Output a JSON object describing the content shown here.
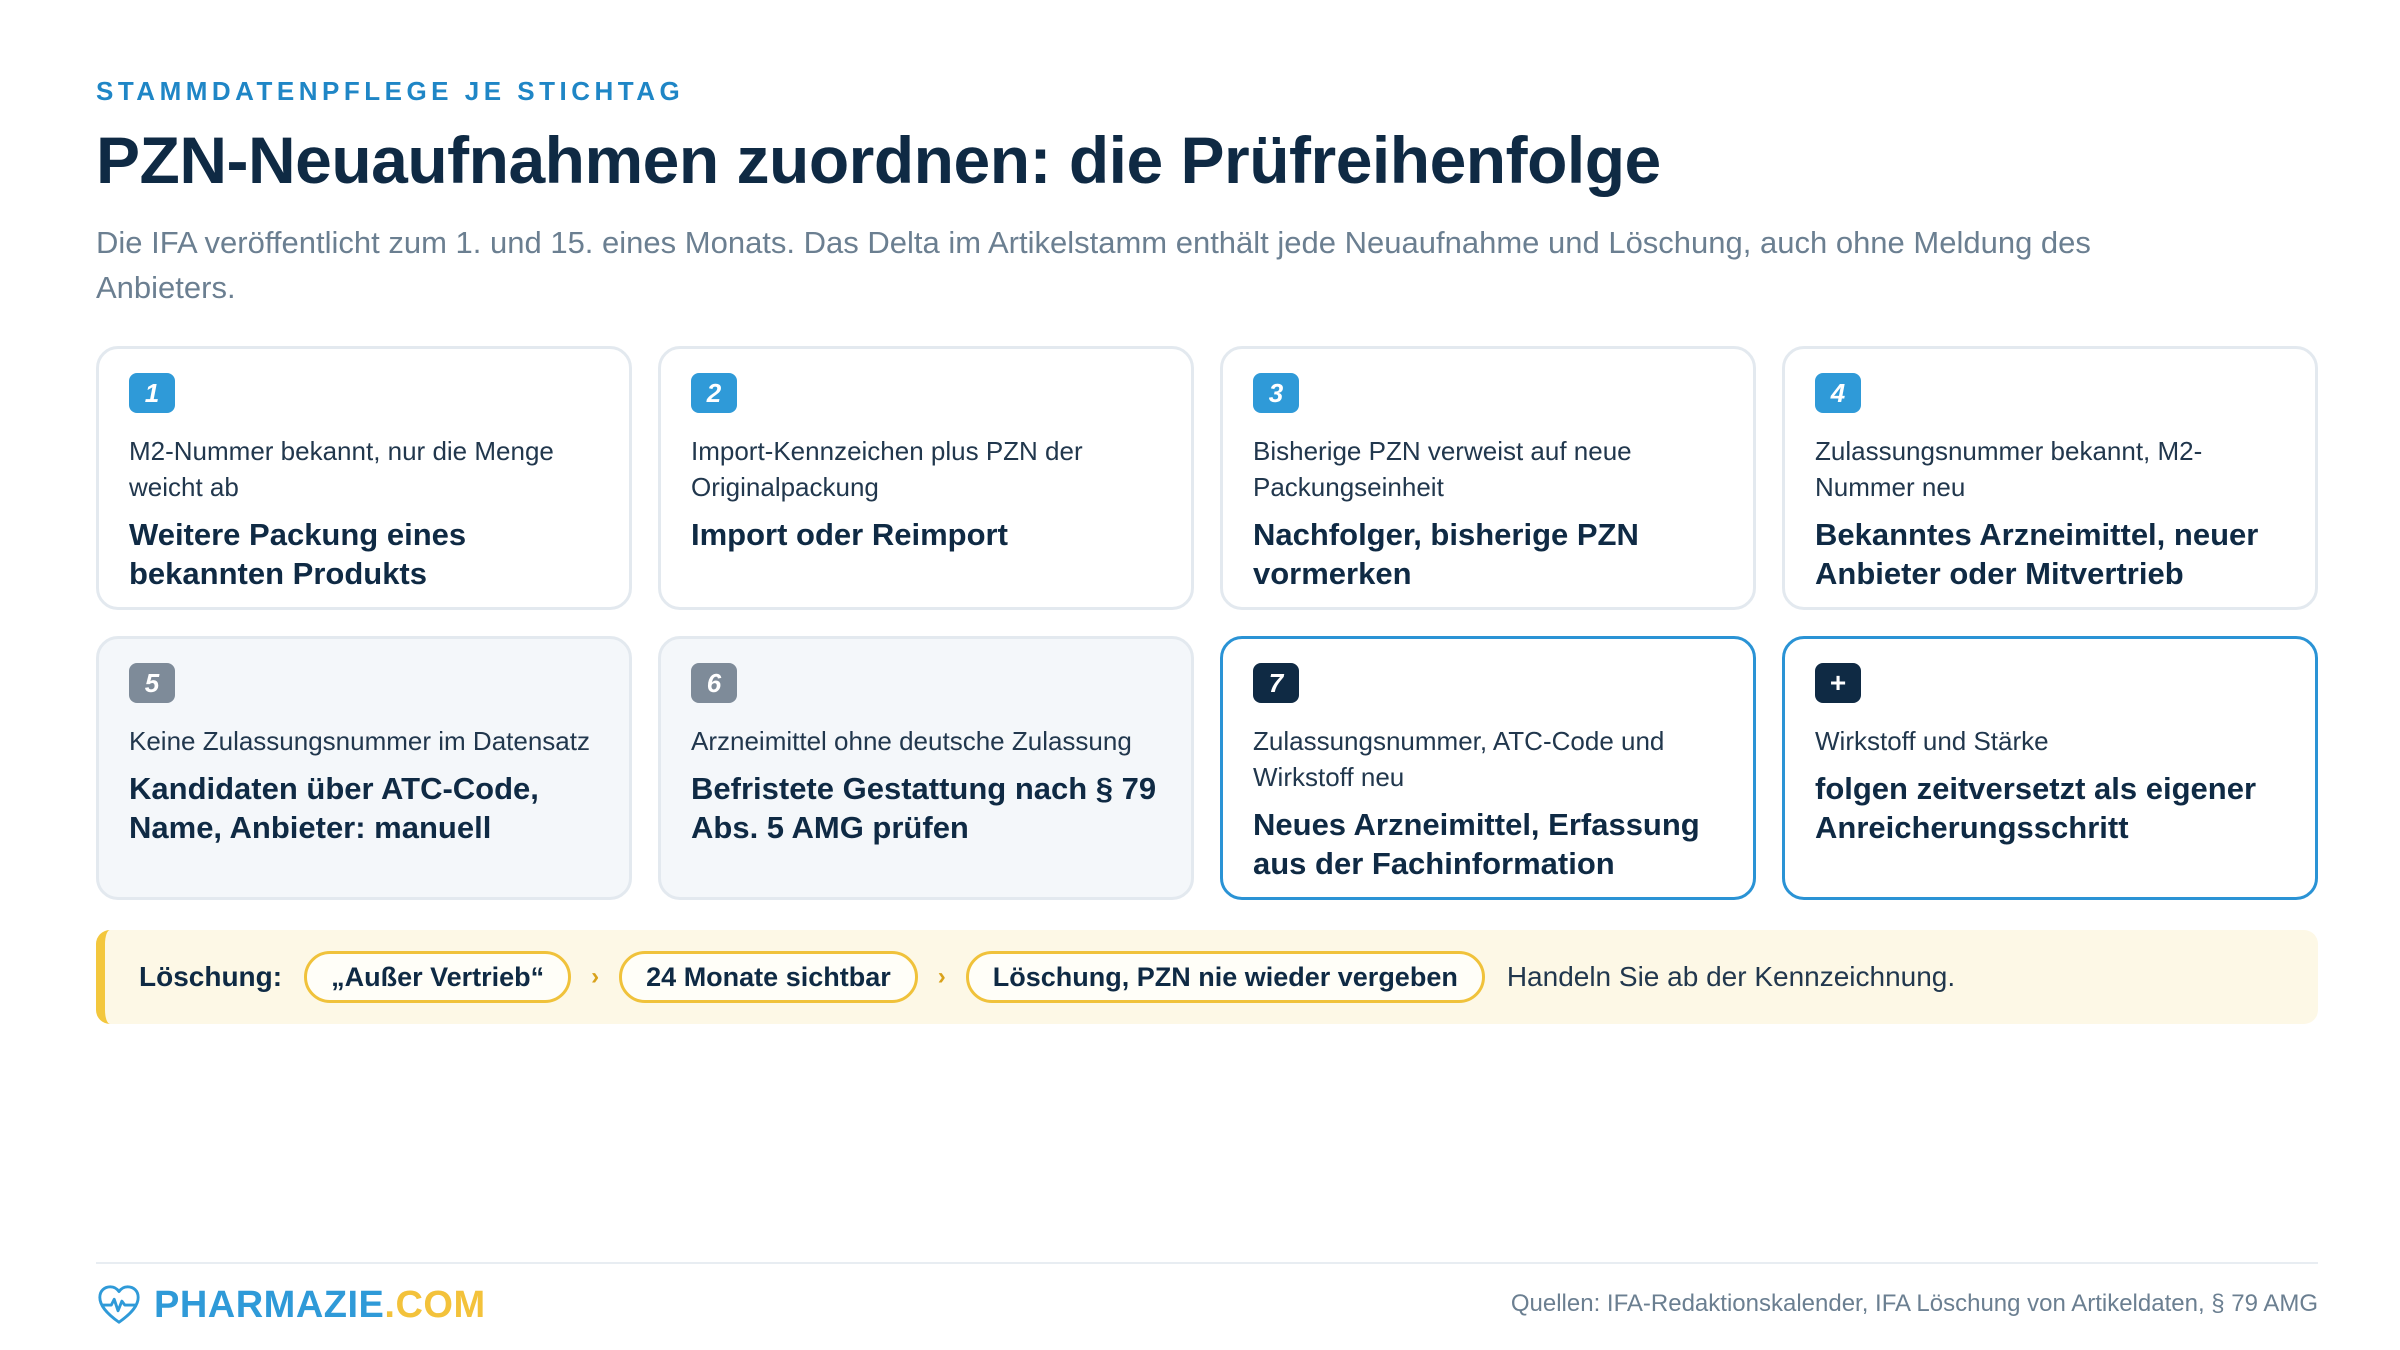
{
  "header": {
    "eyebrow": "STAMMDATENPFLEGE JE STICHTAG",
    "title": "PZN-Neuaufnahmen zuordnen: die Prüfreihenfolge",
    "subtitle": "Die IFA veröffentlicht zum 1. und 15. eines Monats. Das Delta im Artikelstamm enthält jede Neuaufnahme und Löschung, auch ohne Meldung des Anbieters."
  },
  "cards": [
    {
      "badge": "1",
      "condition": "M2-Nummer bekannt, nur die Menge weicht ab",
      "result": "Weitere Packung eines bekannten Produkts"
    },
    {
      "badge": "2",
      "condition": "Import-Kennzeichen plus PZN der Originalpackung",
      "result": "Import oder Reimport"
    },
    {
      "badge": "3",
      "condition": "Bisherige PZN verweist auf neue Packungseinheit",
      "result": "Nachfolger, bisherige PZN vormerken"
    },
    {
      "badge": "4",
      "condition": "Zulassungsnummer bekannt, M2-Nummer neu",
      "result": "Bekanntes Arzneimittel, neuer Anbieter oder Mitvertrieb"
    },
    {
      "badge": "5",
      "condition": "Keine Zulassungsnummer im Datensatz",
      "result": "Kandidaten über ATC-Code, Name, Anbieter: manuell"
    },
    {
      "badge": "6",
      "condition": "Arzneimittel ohne deutsche Zulassung",
      "result": "Befristete Gestattung nach § 79 Abs. 5 AMG prüfen"
    },
    {
      "badge": "7",
      "condition": "Zulassungsnummer, ATC-Code und Wirkstoff neu",
      "result": "Neues Arzneimittel, Erfassung aus der Fachinformation"
    },
    {
      "badge": "+",
      "condition": "Wirkstoff und Stärke",
      "result": "folgen zeitversetzt als eigener Anreicherungsschritt"
    }
  ],
  "deletion": {
    "label": "Löschung:",
    "steps": [
      "„Außer Vertrieb“",
      "24 Monate sichtbar",
      "Löschung, PZN nie wieder vergeben"
    ],
    "separator": "›",
    "note": "Handeln Sie ab der Kennzeichnung."
  },
  "footer": {
    "brand_name": "PHARMAZIE",
    "brand_tld": ".COM",
    "sources": "Quellen: IFA-Redaktionskalender, IFA Löschung von Artikeldaten, § 79 AMG"
  },
  "colors": {
    "accent_blue": "#2f9ad8",
    "navy": "#0f2a44",
    "gray_badge": "#7e8b99",
    "highlight_yellow": "#f3c73d"
  },
  "icons": {
    "logo": "heart-pulse-icon"
  }
}
